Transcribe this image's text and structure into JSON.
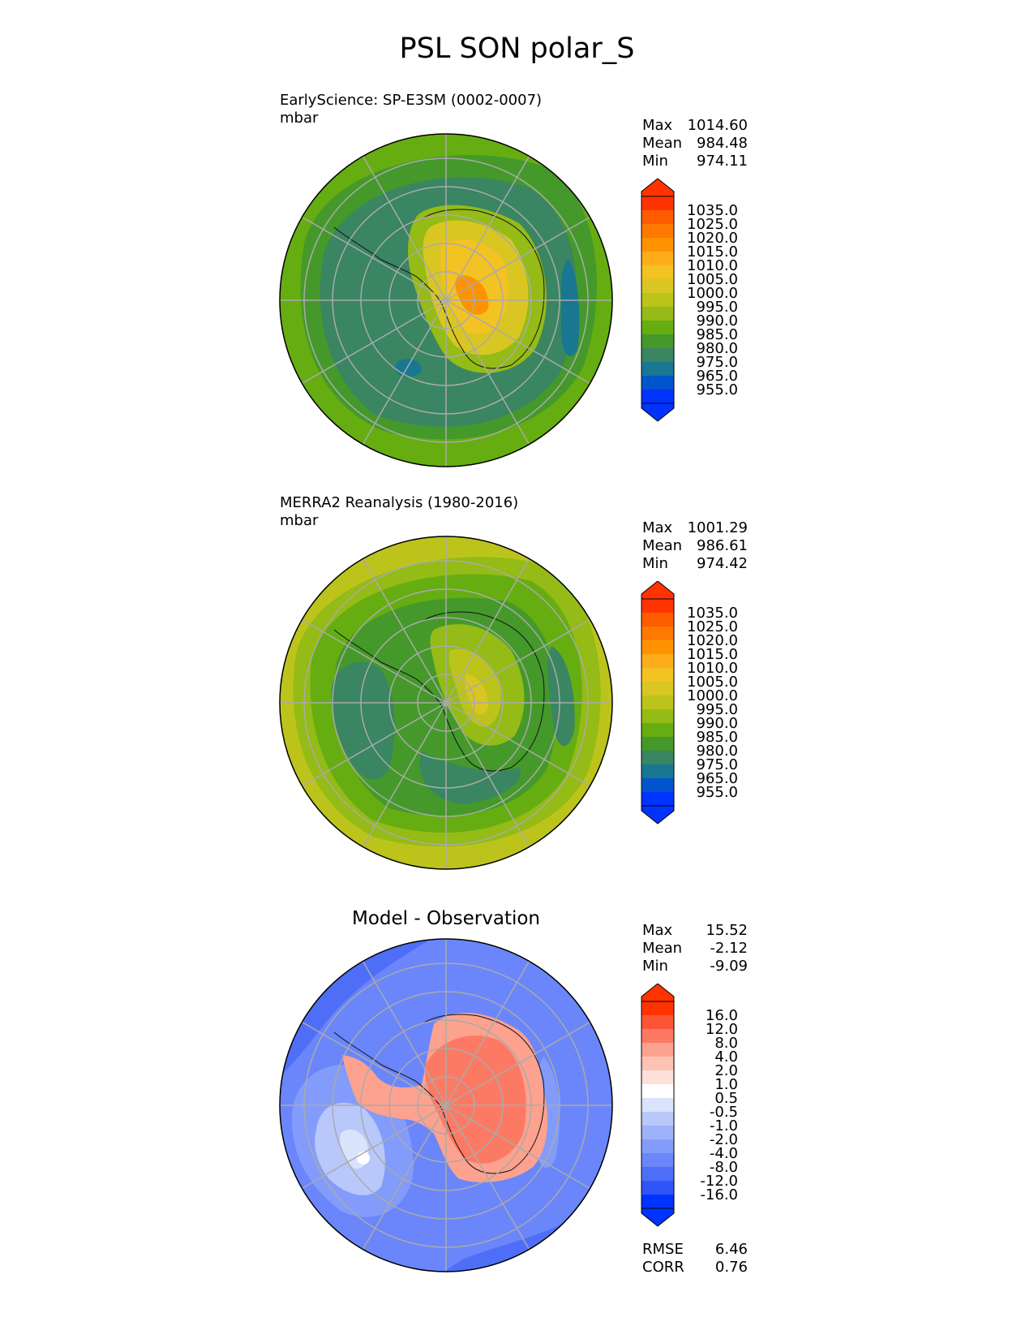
{
  "figure": {
    "title": "PSL SON polar_S"
  },
  "chart_data": [
    {
      "type": "heatmap",
      "projection": "south-polar-stereographic",
      "title": "EarlyScience: SP-E3SM (0002-0007)",
      "units": "mbar",
      "stats": [
        {
          "label": "Max",
          "value": "1014.60"
        },
        {
          "label": "Mean",
          "value": "984.48"
        },
        {
          "label": "Min",
          "value": "974.11"
        }
      ],
      "colorbar": {
        "extend": "both",
        "tick_labels": [
          "1035.0",
          "1025.0",
          "1020.0",
          "1015.0",
          "1010.0",
          "1005.0",
          "1000.0",
          "995.0",
          "990.0",
          "985.0",
          "980.0",
          "975.0",
          "965.0",
          "955.0"
        ],
        "colors": [
          "#ff3300",
          "#ff5c00",
          "#ff7800",
          "#ff9200",
          "#fdac1c",
          "#f3c223",
          "#d9c623",
          "#bcc41c",
          "#94bb16",
          "#66ad12",
          "#44992a",
          "#3a8562",
          "#197792",
          "#0055cc",
          "#0033ff"
        ],
        "extend_high_color": "#ff3300",
        "extend_low_color": "#0033ff"
      }
    },
    {
      "type": "heatmap",
      "projection": "south-polar-stereographic",
      "title": "MERRA2 Reanalysis (1980-2016)",
      "units": "mbar",
      "stats": [
        {
          "label": "Max",
          "value": "1001.29"
        },
        {
          "label": "Mean",
          "value": "986.61"
        },
        {
          "label": "Min",
          "value": "974.42"
        }
      ],
      "colorbar": {
        "extend": "both",
        "tick_labels": [
          "1035.0",
          "1025.0",
          "1020.0",
          "1015.0",
          "1010.0",
          "1005.0",
          "1000.0",
          "995.0",
          "990.0",
          "985.0",
          "980.0",
          "975.0",
          "965.0",
          "955.0"
        ],
        "colors": [
          "#ff3300",
          "#ff5c00",
          "#ff7800",
          "#ff9200",
          "#fdac1c",
          "#f3c223",
          "#d9c623",
          "#bcc41c",
          "#94bb16",
          "#66ad12",
          "#44992a",
          "#3a8562",
          "#197792",
          "#0055cc",
          "#0033ff"
        ],
        "extend_high_color": "#ff3300",
        "extend_low_color": "#0033ff"
      }
    },
    {
      "type": "heatmap",
      "projection": "south-polar-stereographic",
      "title": "Model - Observation",
      "units": "",
      "stats": [
        {
          "label": "Max",
          "value": "15.52"
        },
        {
          "label": "Mean",
          "value": "-2.12"
        },
        {
          "label": "Min",
          "value": "-9.09"
        }
      ],
      "metrics": [
        {
          "label": "RMSE",
          "value": "6.46"
        },
        {
          "label": "CORR",
          "value": "0.76"
        }
      ],
      "colorbar": {
        "extend": "both",
        "tick_labels": [
          "16.0",
          "12.0",
          "8.0",
          "4.0",
          "2.0",
          "1.0",
          "0.5",
          "-0.5",
          "-1.0",
          "-2.0",
          "-4.0",
          "-8.0",
          "-12.0",
          "-16.0"
        ],
        "colors": [
          "#ff3300",
          "#fd5535",
          "#fc7a63",
          "#fca28f",
          "#fcc3b4",
          "#fde0d8",
          "#ffffff",
          "#dae3fc",
          "#b8c8fb",
          "#9db2fb",
          "#839cfb",
          "#6a86fa",
          "#4f6ef8",
          "#2f55f8",
          "#0033ff"
        ],
        "extend_high_color": "#ff3300",
        "extend_low_color": "#0033ff"
      }
    }
  ]
}
